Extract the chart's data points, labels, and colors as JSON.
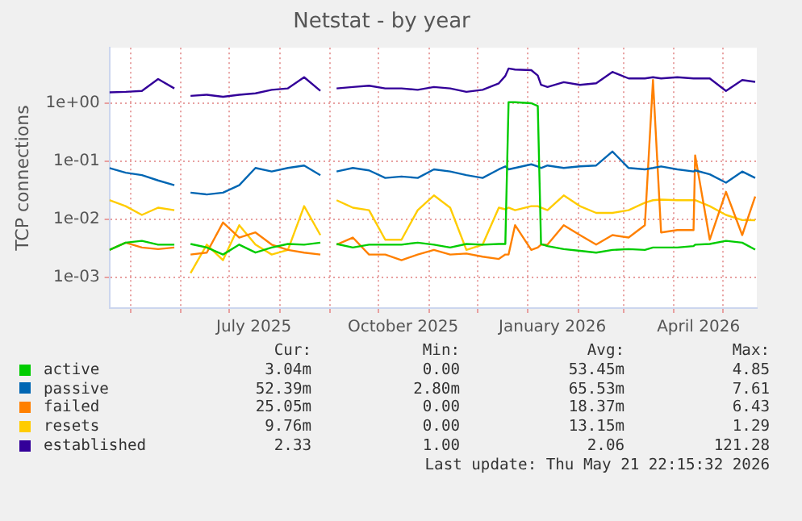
{
  "chart_data": {
    "type": "line",
    "title": "Netstat - by year",
    "ylabel": "TCP connections",
    "log": true,
    "grid": true,
    "legend": "bottom",
    "xlim": [
      "2025-04-18",
      "2026-05-22"
    ],
    "xticks": [
      {
        "value": "2025-05-01",
        "label": null
      },
      {
        "value": "2025-06-01",
        "label": null
      },
      {
        "value": "2025-07-01",
        "label": null
      },
      {
        "value": "2025-07-16",
        "label": "July 2025"
      },
      {
        "value": "2025-08-01",
        "label": null
      },
      {
        "value": "2025-09-01",
        "label": null
      },
      {
        "value": "2025-10-01",
        "label": null
      },
      {
        "value": "2025-10-16",
        "label": "October 2025"
      },
      {
        "value": "2025-11-01",
        "label": null
      },
      {
        "value": "2025-12-01",
        "label": null
      },
      {
        "value": "2026-01-01",
        "label": null
      },
      {
        "value": "2026-01-16",
        "label": "January 2026"
      },
      {
        "value": "2026-02-01",
        "label": null
      },
      {
        "value": "2026-03-01",
        "label": null
      },
      {
        "value": "2026-04-01",
        "label": null
      },
      {
        "value": "2026-04-16",
        "label": "April 2026"
      },
      {
        "value": "2026-05-01",
        "label": null
      }
    ],
    "ylim": [
      0.0003,
      9
    ],
    "yticks": [
      {
        "value": 0.001,
        "label": "1e-03"
      },
      {
        "value": 0.01,
        "label": "1e-02"
      },
      {
        "value": 0.1,
        "label": "1e-01"
      },
      {
        "value": 1,
        "label": "1e+00"
      }
    ],
    "x": [
      "2025-04-18",
      "2025-04-28",
      "2025-05-08",
      "2025-05-18",
      "2025-05-28",
      "2025-05-31",
      "2025-06-07",
      "2025-06-17",
      "2025-06-27",
      "2025-07-07",
      "2025-07-17",
      "2025-07-27",
      "2025-08-06",
      "2025-08-16",
      "2025-08-26",
      "2025-08-28",
      "2025-09-05",
      "2025-09-15",
      "2025-09-25",
      "2025-10-05",
      "2025-10-15",
      "2025-10-25",
      "2025-11-04",
      "2025-11-14",
      "2025-11-24",
      "2025-12-04",
      "2025-12-14",
      "2025-12-18",
      "2025-12-20",
      "2025-12-24",
      "2026-01-03",
      "2026-01-07",
      "2026-01-09",
      "2026-01-13",
      "2026-01-23",
      "2026-02-02",
      "2026-02-12",
      "2026-02-22",
      "2026-03-04",
      "2026-03-14",
      "2026-03-19",
      "2026-03-24",
      "2026-04-03",
      "2026-04-13",
      "2026-04-14",
      "2026-04-23",
      "2026-05-03",
      "2026-05-13",
      "2026-05-21"
    ],
    "series": [
      {
        "name": "active",
        "color": "#00cc00",
        "values": [
          0.003,
          0.004,
          0.0043,
          0.0037,
          0.0037,
          null,
          0.0038,
          0.0033,
          0.0025,
          0.0037,
          0.0027,
          0.0033,
          0.0038,
          0.0037,
          0.004,
          null,
          0.0038,
          0.0033,
          0.0037,
          0.0037,
          0.0037,
          0.004,
          0.0037,
          0.0033,
          0.0038,
          0.0037,
          0.0038,
          0.0038,
          1.04,
          1.04,
          1.0,
          0.9,
          0.0038,
          0.0035,
          0.0031,
          0.0029,
          0.0027,
          0.003,
          0.0031,
          0.003,
          0.0033,
          0.0033,
          0.0033,
          0.0035,
          0.0037,
          0.0038,
          0.0043,
          0.004,
          0.00304
        ]
      },
      {
        "name": "passive",
        "color": "#0066b3",
        "values": [
          0.077,
          0.064,
          0.058,
          0.047,
          0.039,
          null,
          0.029,
          0.027,
          0.029,
          0.039,
          0.077,
          0.067,
          0.077,
          0.085,
          0.058,
          null,
          0.067,
          0.077,
          0.07,
          0.052,
          0.055,
          0.052,
          0.073,
          0.067,
          0.058,
          0.052,
          0.073,
          0.082,
          0.073,
          0.077,
          0.089,
          0.082,
          0.077,
          0.085,
          0.077,
          0.082,
          0.085,
          0.148,
          0.077,
          0.073,
          0.077,
          0.082,
          0.073,
          0.067,
          0.07,
          0.06,
          0.043,
          0.067,
          0.052
        ]
      },
      {
        "name": "failed",
        "color": "#ff8000",
        "values": [
          0.003,
          0.004,
          0.0033,
          0.0031,
          0.0033,
          null,
          0.0025,
          0.0027,
          0.0089,
          0.0049,
          0.006,
          0.0037,
          0.003,
          0.0027,
          0.0025,
          null,
          0.0037,
          0.0049,
          0.0025,
          0.0025,
          0.002,
          0.0025,
          0.003,
          0.0025,
          0.0026,
          0.0023,
          0.0021,
          0.0025,
          0.0025,
          0.008,
          0.003,
          0.0033,
          0.0037,
          0.0037,
          0.008,
          0.0054,
          0.0037,
          0.0054,
          0.0049,
          0.008,
          2.5,
          0.006,
          0.0066,
          0.0066,
          0.127,
          0.0045,
          0.03,
          0.0054,
          0.025
        ]
      },
      {
        "name": "resets",
        "color": "#ffcc00",
        "values": [
          0.0215,
          0.017,
          0.012,
          0.016,
          0.0145,
          null,
          0.0012,
          0.0037,
          0.002,
          0.008,
          0.0037,
          0.0025,
          0.003,
          0.017,
          0.0054,
          null,
          0.0215,
          0.016,
          0.0145,
          0.0045,
          0.0045,
          0.0145,
          0.026,
          0.016,
          0.003,
          0.0037,
          0.016,
          0.015,
          0.016,
          0.0145,
          0.017,
          0.017,
          0.016,
          0.0145,
          0.026,
          0.017,
          0.013,
          0.013,
          0.0145,
          0.0195,
          0.0215,
          0.022,
          0.0215,
          0.0215,
          0.0215,
          0.017,
          0.012,
          0.0098,
          0.00976
        ]
      },
      {
        "name": "established",
        "color": "#330099",
        "values": [
          1.54,
          1.57,
          1.63,
          2.6,
          1.8,
          null,
          1.34,
          1.4,
          1.29,
          1.4,
          1.48,
          1.7,
          1.8,
          2.8,
          1.63,
          null,
          1.8,
          1.9,
          2.0,
          1.8,
          1.8,
          1.7,
          1.9,
          1.8,
          1.57,
          1.7,
          2.2,
          2.95,
          3.96,
          3.8,
          3.7,
          3.0,
          2.07,
          1.9,
          2.3,
          2.07,
          2.2,
          3.45,
          2.67,
          2.67,
          2.8,
          2.67,
          2.8,
          2.67,
          2.67,
          2.67,
          1.63,
          2.5,
          2.33
        ]
      }
    ],
    "annotations": [
      "Cur:",
      "Min:",
      "Avg:",
      "Max:",
      "3.04m",
      "0.00",
      "53.45m",
      "4.85",
      "52.39m",
      "2.80m",
      "65.53m",
      "7.61",
      "25.05m",
      "0.00",
      "18.37m",
      "6.43",
      "9.76m",
      "0.00",
      "13.15m",
      "1.29",
      "2.33",
      "1.00",
      "2.06",
      "121.28",
      "Last update: Thu May 21 22:15:32 2026"
    ]
  }
}
